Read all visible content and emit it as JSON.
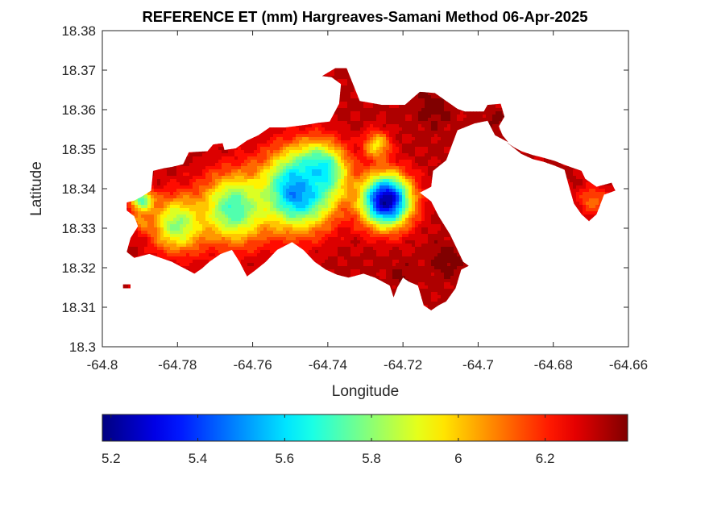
{
  "chart_data": {
    "type": "heatmap",
    "title": "REFERENCE ET (mm) Hargreaves-Samani Method  06-Apr-2025",
    "xlabel": "Longitude",
    "ylabel": "Latitude",
    "xlim": [
      -64.8,
      -64.66
    ],
    "ylim": [
      18.3,
      18.38
    ],
    "xticks": [
      "-64.8",
      "-64.78",
      "-64.76",
      "-64.74",
      "-64.72",
      "-64.7",
      "-64.68",
      "-64.66"
    ],
    "yticks": [
      "18.3",
      "18.31",
      "18.32",
      "18.33",
      "18.34",
      "18.35",
      "18.36",
      "18.37",
      "18.38"
    ],
    "colormap": "jet",
    "clim": [
      5.18,
      6.39
    ],
    "colorbar_ticks": [
      "5.2",
      "5.4",
      "5.6",
      "5.8",
      "6",
      "6.2"
    ],
    "colorbar_position": "bottom",
    "grid": false,
    "island_outline": [
      [
        -64.7935,
        18.3365
      ],
      [
        -64.7915,
        18.337
      ],
      [
        -64.7895,
        18.338
      ],
      [
        -64.787,
        18.3395
      ],
      [
        -64.7865,
        18.3445
      ],
      [
        -64.7835,
        18.3452
      ],
      [
        -64.7815,
        18.3455
      ],
      [
        -64.7785,
        18.3462
      ],
      [
        -64.777,
        18.3492
      ],
      [
        -64.772,
        18.3495
      ],
      [
        -64.7705,
        18.3512
      ],
      [
        -64.768,
        18.3515
      ],
      [
        -64.7675,
        18.3498
      ],
      [
        -64.7645,
        18.3502
      ],
      [
        -64.7615,
        18.3522
      ],
      [
        -64.7585,
        18.3535
      ],
      [
        -64.7555,
        18.3555
      ],
      [
        -64.7515,
        18.3555
      ],
      [
        -64.7455,
        18.3562
      ],
      [
        -64.7425,
        18.3567
      ],
      [
        -64.7395,
        18.357
      ],
      [
        -64.737,
        18.3615
      ],
      [
        -64.7365,
        18.3665
      ],
      [
        -64.739,
        18.3682
      ],
      [
        -64.7415,
        18.3685
      ],
      [
        -64.738,
        18.3705
      ],
      [
        -64.735,
        18.3705
      ],
      [
        -64.7315,
        18.3622
      ],
      [
        -64.7255,
        18.3612
      ],
      [
        -64.7195,
        18.3612
      ],
      [
        -64.7155,
        18.3645
      ],
      [
        -64.7115,
        18.3642
      ],
      [
        -64.7085,
        18.3622
      ],
      [
        -64.7055,
        18.3602
      ],
      [
        -64.7035,
        18.3595
      ],
      [
        -64.6985,
        18.3595
      ],
      [
        -64.6975,
        18.3612
      ],
      [
        -64.694,
        18.3615
      ],
      [
        -64.693,
        18.3582
      ],
      [
        -64.6945,
        18.3558
      ],
      [
        -64.6935,
        18.3535
      ],
      [
        -64.692,
        18.3518
      ],
      [
        -64.6955,
        18.3535
      ],
      [
        -64.6975,
        18.3572
      ],
      [
        -64.701,
        18.3565
      ],
      [
        -64.7055,
        18.3548
      ],
      [
        -64.7085,
        18.3472
      ],
      [
        -64.712,
        18.3445
      ],
      [
        -64.7125,
        18.3405
      ],
      [
        -64.7155,
        18.339
      ],
      [
        -64.7125,
        18.3368
      ],
      [
        -64.7105,
        18.333
      ],
      [
        -64.7075,
        18.3285
      ],
      [
        -64.7055,
        18.3245
      ],
      [
        -64.704,
        18.3215
      ],
      [
        -64.7025,
        18.3205
      ],
      [
        -64.7045,
        18.3195
      ],
      [
        -64.706,
        18.3148
      ],
      [
        -64.7085,
        18.3115
      ],
      [
        -64.7105,
        18.3105
      ],
      [
        -64.7125,
        18.3092
      ],
      [
        -64.7145,
        18.3105
      ],
      [
        -64.716,
        18.3155
      ],
      [
        -64.7185,
        18.3165
      ],
      [
        -64.72,
        18.3175
      ],
      [
        -64.7215,
        18.315
      ],
      [
        -64.7225,
        18.3125
      ],
      [
        -64.7235,
        18.3155
      ],
      [
        -64.7255,
        18.3165
      ],
      [
        -64.7275,
        18.3175
      ],
      [
        -64.7305,
        18.3185
      ],
      [
        -64.7345,
        18.3175
      ],
      [
        -64.7375,
        18.3182
      ],
      [
        -64.7405,
        18.3195
      ],
      [
        -64.7435,
        18.3215
      ],
      [
        -64.7465,
        18.3245
      ],
      [
        -64.7495,
        18.3265
      ],
      [
        -64.7535,
        18.3245
      ],
      [
        -64.7565,
        18.3215
      ],
      [
        -64.7595,
        18.3192
      ],
      [
        -64.7615,
        18.3178
      ],
      [
        -64.7635,
        18.3215
      ],
      [
        -64.7655,
        18.3245
      ],
      [
        -64.7685,
        18.3235
      ],
      [
        -64.7715,
        18.3215
      ],
      [
        -64.7735,
        18.3198
      ],
      [
        -64.7755,
        18.3185
      ],
      [
        -64.7775,
        18.3195
      ],
      [
        -64.7795,
        18.3205
      ],
      [
        -64.7815,
        18.3215
      ],
      [
        -64.7845,
        18.3225
      ],
      [
        -64.7875,
        18.3235
      ],
      [
        -64.7915,
        18.3225
      ],
      [
        -64.7935,
        18.324
      ],
      [
        -64.7925,
        18.3275
      ],
      [
        -64.7905,
        18.3305
      ],
      [
        -64.7915,
        18.333
      ],
      [
        -64.7935,
        18.3345
      ],
      [
        -64.7935,
        18.3365
      ]
    ],
    "tail_outline": [
      [
        -64.6925,
        18.3518
      ],
      [
        -64.6905,
        18.3505
      ],
      [
        -64.6885,
        18.3495
      ],
      [
        -64.6855,
        18.3485
      ],
      [
        -64.6825,
        18.3478
      ],
      [
        -64.6795,
        18.347
      ],
      [
        -64.6775,
        18.3462
      ],
      [
        -64.6755,
        18.3455
      ],
      [
        -64.6725,
        18.3445
      ],
      [
        -64.6715,
        18.3425
      ],
      [
        -64.6685,
        18.3405
      ],
      [
        -64.6645,
        18.3415
      ],
      [
        -64.6635,
        18.3395
      ],
      [
        -64.6665,
        18.3385
      ],
      [
        -64.6685,
        18.3335
      ],
      [
        -64.6705,
        18.3318
      ],
      [
        -64.6725,
        18.3335
      ],
      [
        -64.6745,
        18.3362
      ],
      [
        -64.676,
        18.3412
      ],
      [
        -64.677,
        18.3448
      ],
      [
        -64.6795,
        18.3458
      ],
      [
        -64.6825,
        18.3468
      ],
      [
        -64.6855,
        18.3475
      ],
      [
        -64.6885,
        18.3488
      ],
      [
        -64.6925,
        18.3518
      ]
    ],
    "islet_outline": [
      [
        -64.7945,
        18.3158
      ],
      [
        -64.7925,
        18.3158
      ],
      [
        -64.7925,
        18.3148
      ],
      [
        -64.7945,
        18.3148
      ],
      [
        -64.7945,
        18.3158
      ]
    ],
    "value_field": {
      "base": 6.32,
      "centers": [
        {
          "lon": -64.7245,
          "lat": 18.337,
          "et": 5.2,
          "r": 0.0065
        },
        {
          "lon": -64.748,
          "lat": 18.3395,
          "et": 5.45,
          "r": 0.0095
        },
        {
          "lon": -64.742,
          "lat": 18.3445,
          "et": 5.6,
          "r": 0.0065
        },
        {
          "lon": -64.765,
          "lat": 18.335,
          "et": 5.7,
          "r": 0.0085
        },
        {
          "lon": -64.78,
          "lat": 18.331,
          "et": 5.8,
          "r": 0.007
        },
        {
          "lon": -64.7895,
          "lat": 18.337,
          "et": 5.72,
          "r": 0.003
        },
        {
          "lon": -64.7895,
          "lat": 18.332,
          "et": 6.05,
          "r": 0.0025
        },
        {
          "lon": -64.727,
          "lat": 18.351,
          "et": 5.95,
          "r": 0.0035
        },
        {
          "lon": -64.7045,
          "lat": 18.3425,
          "et": 5.95,
          "r": 0.0015
        },
        {
          "lon": -64.712,
          "lat": 18.3605,
          "et": 6.4,
          "r": 0.0045
        },
        {
          "lon": -64.7085,
          "lat": 18.322,
          "et": 6.4,
          "r": 0.004
        },
        {
          "lon": -64.7205,
          "lat": 18.318,
          "et": 6.38,
          "r": 0.003
        },
        {
          "lon": -64.6955,
          "lat": 18.3575,
          "et": 6.4,
          "r": 0.002
        },
        {
          "lon": -64.6695,
          "lat": 18.337,
          "et": 6.12,
          "r": 0.004
        }
      ]
    }
  }
}
